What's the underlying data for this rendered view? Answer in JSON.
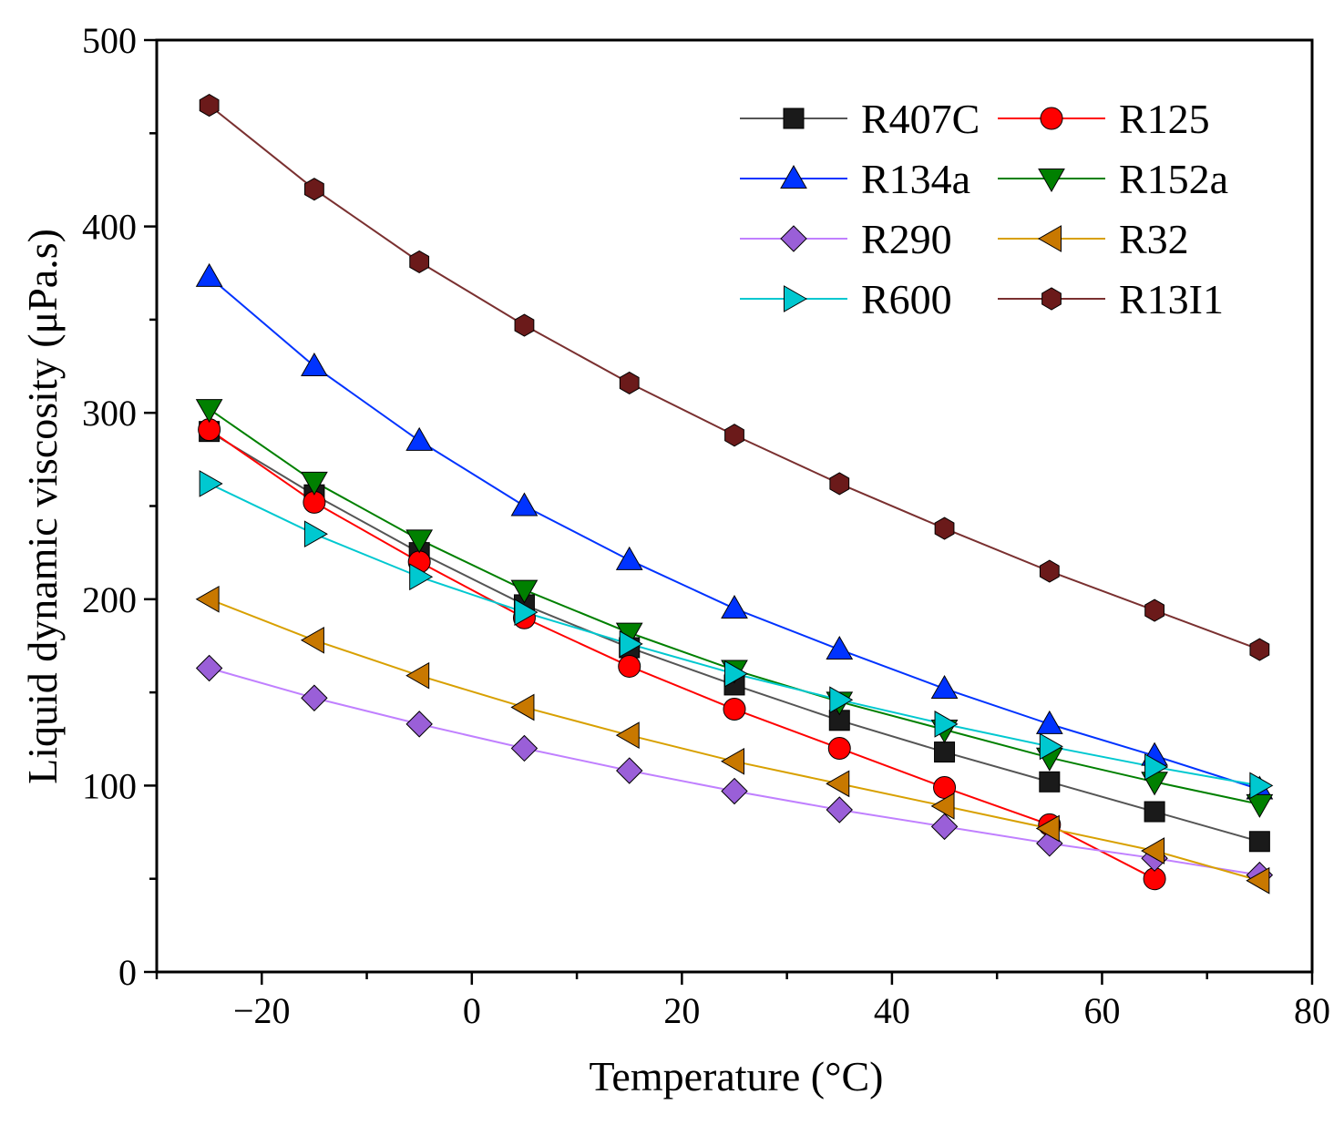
{
  "chart_data": {
    "type": "line",
    "title": "",
    "xlabel": "Temperature (°C)",
    "ylabel": "Liquid dynamic viscosity (μPa.s)",
    "xlim": [
      -30,
      80
    ],
    "ylim": [
      0,
      500
    ],
    "xticks": [
      -20,
      0,
      20,
      40,
      60,
      80
    ],
    "yticks": [
      0,
      100,
      200,
      300,
      400,
      500
    ],
    "xtick_labels": [
      "−20",
      "0",
      "20",
      "40",
      "60",
      "80"
    ],
    "ytick_labels": [
      "0",
      "100",
      "200",
      "300",
      "400",
      "500"
    ],
    "grid": false,
    "legend_position": "top-right",
    "x": [
      -25,
      -15,
      -5,
      5,
      15,
      25,
      35,
      45,
      55,
      65,
      75
    ],
    "series": [
      {
        "name": "R407C",
        "marker": "square",
        "color": "#1a1a1a",
        "line_color": "#555555",
        "values": [
          290,
          256,
          225,
          197,
          174,
          154,
          135,
          118,
          102,
          86,
          70
        ]
      },
      {
        "name": "R125",
        "marker": "circle",
        "color": "#ff0000",
        "line_color": "#ff0000",
        "values": [
          291,
          252,
          220,
          190,
          164,
          141,
          120,
          99,
          79,
          50,
          null
        ]
      },
      {
        "name": "R134a",
        "marker": "triangle-up",
        "color": "#0033ff",
        "line_color": "#0033ff",
        "values": [
          373,
          325,
          285,
          250,
          221,
          195,
          173,
          152,
          133,
          116,
          98
        ]
      },
      {
        "name": "R152a",
        "marker": "triangle-down",
        "color": "#008000",
        "line_color": "#008000",
        "values": [
          302,
          263,
          232,
          205,
          182,
          162,
          145,
          130,
          115,
          102,
          90
        ]
      },
      {
        "name": "R290",
        "marker": "diamond",
        "color": "#9a5fd8",
        "line_color": "#c080ff",
        "values": [
          163,
          147,
          133,
          120,
          108,
          97,
          87,
          78,
          69,
          61,
          52
        ]
      },
      {
        "name": "R32",
        "marker": "triangle-left",
        "color": "#c87800",
        "line_color": "#d8a000",
        "values": [
          200,
          178,
          159,
          142,
          127,
          113,
          101,
          89,
          77,
          65,
          49
        ]
      },
      {
        "name": "R600",
        "marker": "triangle-right",
        "color": "#00c8d0",
        "line_color": "#00c8d0",
        "values": [
          262,
          235,
          212,
          193,
          176,
          160,
          146,
          133,
          121,
          110,
          100
        ]
      },
      {
        "name": "R13I1",
        "marker": "hexagon",
        "color": "#6b1a1a",
        "line_color": "#7a3030",
        "values": [
          465,
          420,
          381,
          347,
          316,
          288,
          262,
          238,
          215,
          194,
          173
        ]
      }
    ]
  }
}
